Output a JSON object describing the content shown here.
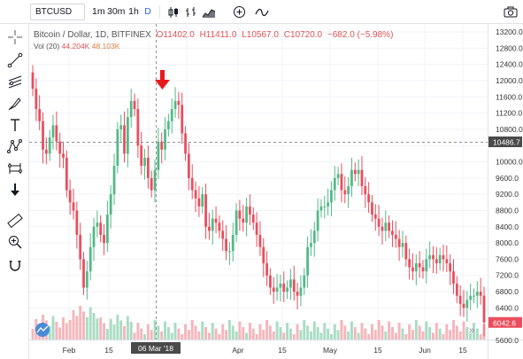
{
  "toolbar": {
    "symbol": "BTCUSD",
    "intervals": [
      "1m",
      "30m",
      "1h",
      "D"
    ],
    "active_interval": "D"
  },
  "legend": {
    "title": "Bitcoin / Dollar, 1D, BITFINEX",
    "open": "O11402.0",
    "high": "H11411.0",
    "low": "L10567.0",
    "close": "C10720.0",
    "change": "−682.0 (−5.98%)"
  },
  "volume": {
    "label": "Vol (20)",
    "value1": "44.204K",
    "value2": "48.103K"
  },
  "price_axis": {
    "ticks": [
      "13200.0",
      "12800.0",
      "12400.0",
      "12000.0",
      "11600.0",
      "11200.0",
      "10800.0",
      "10000.0",
      "9600.0",
      "9200.0",
      "8800.0",
      "8400.0",
      "8000.0",
      "7600.0",
      "7200.0",
      "6800.0",
      "6400.0",
      "5600.0"
    ],
    "crosshair_price": "10486.7",
    "last_price": "6042.6"
  },
  "time_axis": {
    "ticks": [
      "Feb",
      "15",
      "15",
      "Apr",
      "15",
      "May",
      "15",
      "Jun",
      "15"
    ],
    "crosshair_date": "06 Mar '18"
  },
  "colors": {
    "up": "#53b987",
    "down": "#eb4d5c",
    "arrow": "#e8191d",
    "crosshair": "#8f8f8f"
  },
  "chart_data": {
    "type": "candlestick",
    "symbol": "BTCUSD",
    "exchange": "BITFINEX",
    "interval": "1D",
    "ylim": [
      5600,
      13200
    ],
    "annotation": {
      "type": "down-arrow",
      "date": "06 Mar '18"
    },
    "closes": [
      11800,
      11300,
      11000,
      10300,
      10200,
      10600,
      10900,
      10500,
      10200,
      10100,
      9300,
      9000,
      8800,
      8200,
      7600,
      6900,
      7300,
      7900,
      8400,
      8500,
      8200,
      8000,
      8700,
      9200,
      9900,
      10800,
      10900,
      10200,
      11100,
      11500,
      11300,
      10400,
      9900,
      10100,
      9600,
      9300,
      9800,
      10500,
      10300,
      10800,
      11000,
      11300,
      11500,
      11400,
      10700,
      10200,
      9600,
      9300,
      9100,
      8900,
      9200,
      8400,
      8300,
      8600,
      8500,
      8300,
      8100,
      7800,
      7800,
      8200,
      8800,
      8600,
      8500,
      8900,
      8700,
      8500,
      8200,
      7900,
      7500,
      7200,
      6900,
      6800,
      6900,
      7000,
      6800,
      6900,
      7100,
      6800,
      6700,
      6900,
      7200,
      7900,
      8000,
      8300,
      8800,
      8900,
      8900,
      9000,
      9300,
      9600,
      9700,
      9300,
      9200,
      9400,
      9800,
      9700,
      9800,
      9400,
      9200,
      9000,
      8700,
      8600,
      8400,
      8300,
      8500,
      8300,
      8200,
      8100,
      7900,
      8000,
      7600,
      7400,
      7300,
      7500,
      7400,
      7300,
      7600,
      7700,
      7600,
      7500,
      7700,
      7600,
      7500,
      7300,
      7000,
      6700,
      6500,
      6400,
      6600,
      6700,
      6700,
      6800,
      6700,
      6042
    ]
  }
}
